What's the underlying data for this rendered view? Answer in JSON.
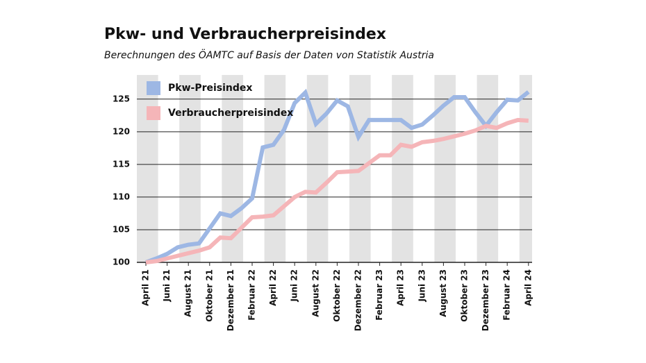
{
  "chart_data": {
    "type": "line",
    "title": "Pkw- und Verbraucherpreisindex",
    "subtitle": "Berechnungen des ÖAMTC auf Basis der Daten von Statistik Austria",
    "categories": [
      "April 21",
      null,
      "Juni 21",
      null,
      "August 21",
      null,
      "Oktober 21",
      null,
      "Dezember 21",
      null,
      "Februar 22",
      null,
      "April 22",
      null,
      "Juni 22",
      null,
      "August 22",
      null,
      "Oktober 22",
      null,
      "Dezember 22",
      null,
      "Februar 23",
      null,
      "April 23",
      null,
      "Juni 23",
      null,
      "August 23",
      null,
      "Oktober 23",
      null,
      "Dezember 23",
      null,
      "Februar 24",
      null,
      "April 24"
    ],
    "series": [
      {
        "name": "Pkw-Preisindex",
        "color": "#9db7e4",
        "values": [
          100.0,
          100.6,
          101.3,
          102.3,
          102.7,
          102.9,
          105.2,
          107.5,
          107.1,
          108.3,
          109.8,
          117.6,
          118.0,
          120.3,
          124.4,
          126.0,
          121.2,
          122.8,
          124.8,
          123.9,
          119.2,
          121.8,
          121.8,
          121.8,
          121.8,
          120.6,
          121.1,
          122.5,
          124.0,
          125.3,
          125.3,
          123.0,
          120.9,
          123.0,
          124.9,
          124.8,
          126.1
        ]
      },
      {
        "name": "Verbraucherpreisindex",
        "color": "#f5b5b8",
        "values": [
          100.0,
          100.2,
          100.6,
          101.0,
          101.4,
          101.8,
          102.3,
          103.8,
          103.7,
          105.3,
          106.9,
          107.0,
          107.2,
          108.6,
          110.0,
          110.8,
          110.7,
          112.2,
          113.8,
          113.9,
          114.0,
          115.2,
          116.4,
          116.4,
          118.0,
          117.7,
          118.4,
          118.6,
          118.9,
          119.3,
          119.7,
          120.2,
          120.9,
          120.6,
          121.3,
          121.8,
          121.7
        ]
      }
    ],
    "ylim": [
      100,
      128.7
    ],
    "yticks": [
      100,
      105,
      110,
      115,
      120,
      125
    ],
    "grid": true
  }
}
